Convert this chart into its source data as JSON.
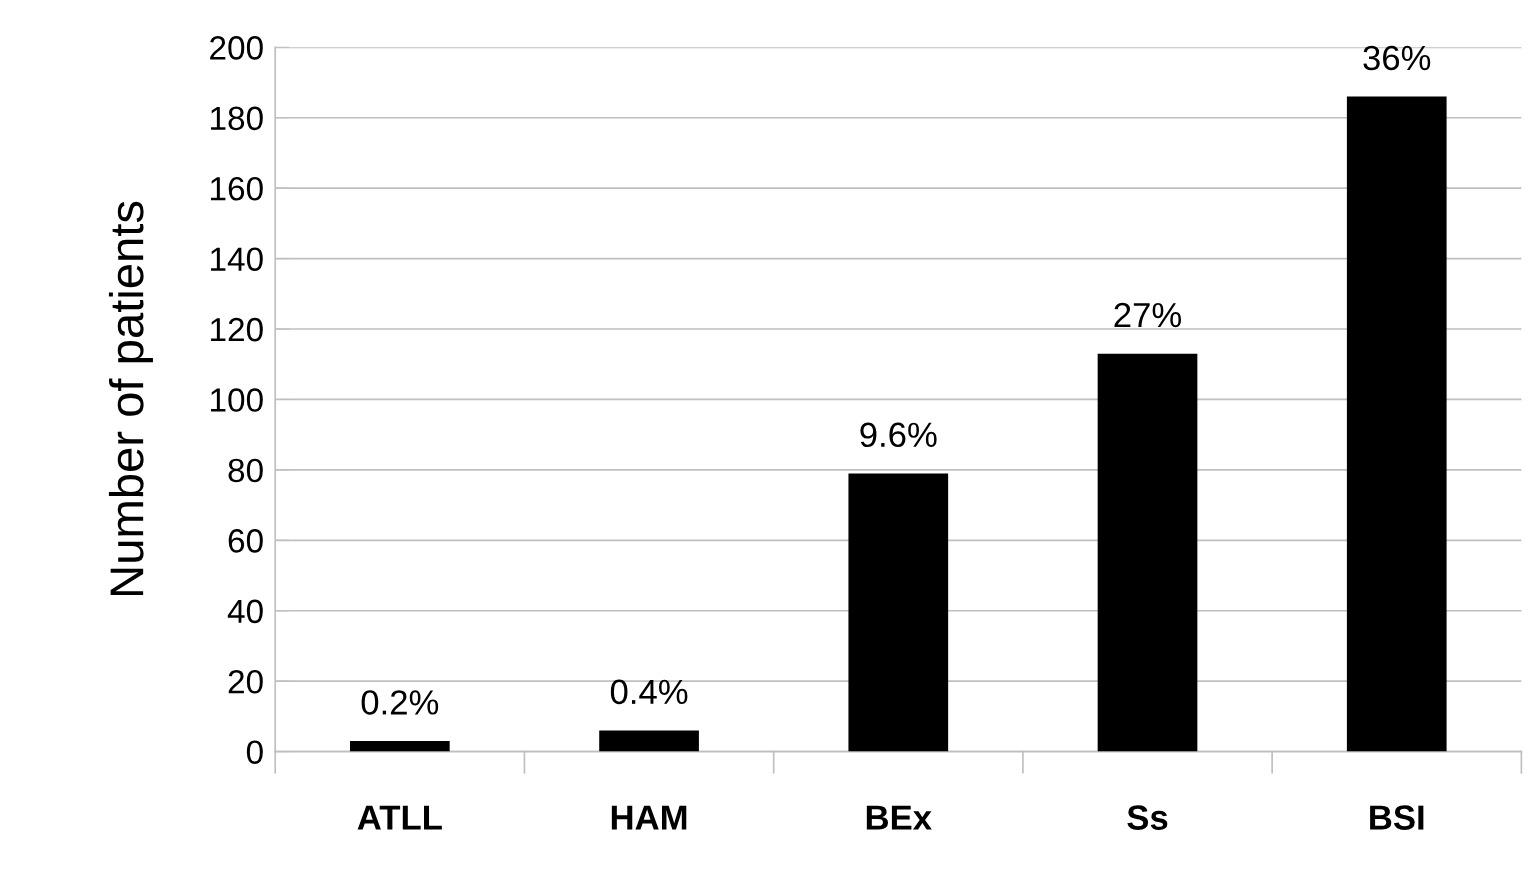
{
  "chart_data": {
    "type": "bar",
    "ylabel": "Number of patients",
    "categories": [
      "ATLL",
      "HAM",
      "BEx",
      "Ss",
      "BSI"
    ],
    "values": [
      3,
      6,
      79,
      113,
      186
    ],
    "annotations": [
      {
        "text": "0.2%",
        "x": "ATLL",
        "y": 3
      },
      {
        "text": "0.4%",
        "x": "HAM",
        "y": 6
      },
      {
        "text": "9.6%",
        "x": "BEx",
        "y": 79
      },
      {
        "text": "27%",
        "x": "Ss",
        "y": 113
      },
      {
        "text": "36%",
        "x": "BSI",
        "y": 186
      }
    ],
    "color": "#000000",
    "ylim": [
      0,
      200
    ],
    "yticks": [
      0,
      20,
      40,
      60,
      80,
      100,
      120,
      140,
      160,
      180,
      200
    ],
    "grid": "y"
  }
}
